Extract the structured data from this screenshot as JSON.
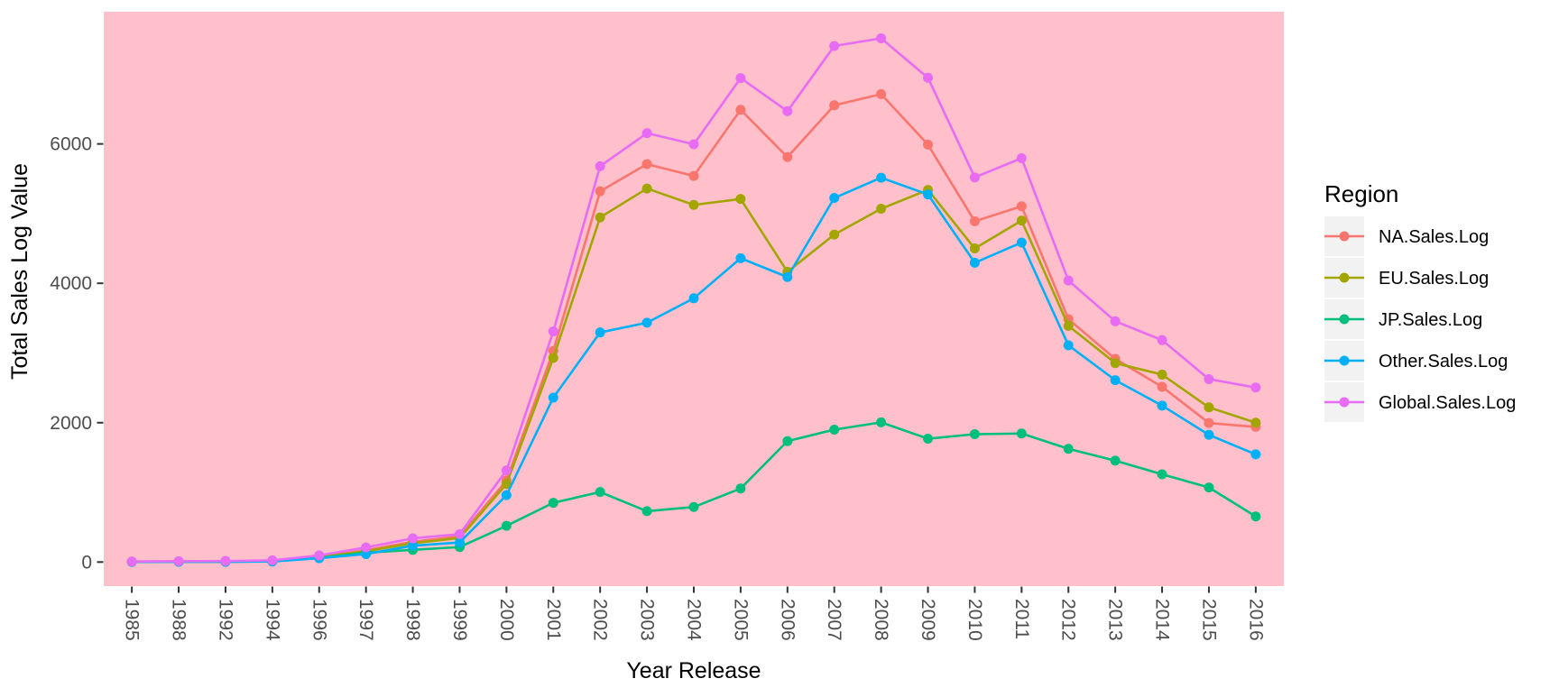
{
  "chart_data": {
    "type": "line",
    "title": "",
    "xlabel": "Year Release",
    "ylabel": "Total Sales Log Value",
    "legend_title": "Region",
    "legend_position": "right",
    "grid": false,
    "panel_bg": "#FFC0CB",
    "legend_key_bg": "#F2F2F2",
    "axis_text_color": "#4D4D4D",
    "tick_mark_color": "#333333",
    "y_ticks": [
      0,
      2000,
      4000,
      6000
    ],
    "ylim": [
      -345,
      7897
    ],
    "categories": [
      "1985",
      "1988",
      "1992",
      "1994",
      "1996",
      "1997",
      "1998",
      "1999",
      "2000",
      "2001",
      "2002",
      "2003",
      "2004",
      "2005",
      "2006",
      "2007",
      "2008",
      "2009",
      "2010",
      "2011",
      "2012",
      "2013",
      "2014",
      "2015",
      "2016"
    ],
    "series": [
      {
        "name": "NA.Sales.Log",
        "color": "#F8766D",
        "values": [
          5,
          8,
          8,
          15,
          75,
          170,
          290,
          370,
          1170,
          3030,
          5320,
          5710,
          5540,
          6490,
          5810,
          6555,
          6715,
          5990,
          4890,
          5105,
          3485,
          2915,
          2515,
          1995,
          1940
        ]
      },
      {
        "name": "EU.Sales.Log",
        "color": "#A3A500",
        "values": [
          3,
          5,
          5,
          12,
          70,
          155,
          270,
          345,
          1120,
          2930,
          4945,
          5360,
          5125,
          5210,
          4165,
          4700,
          5070,
          5340,
          4500,
          4900,
          3390,
          2855,
          2690,
          2220,
          2000
        ]
      },
      {
        "name": "JP.Sales.Log",
        "color": "#00BF7D",
        "values": [
          5,
          8,
          10,
          18,
          60,
          135,
          175,
          215,
          520,
          850,
          1005,
          730,
          790,
          1055,
          1735,
          1900,
          2005,
          1770,
          1835,
          1845,
          1625,
          1455,
          1260,
          1070,
          655
        ]
      },
      {
        "name": "Other.Sales.Log",
        "color": "#00B0F6",
        "values": [
          2,
          3,
          3,
          8,
          55,
          115,
          235,
          280,
          960,
          2360,
          3295,
          3435,
          3785,
          4360,
          4090,
          5225,
          5515,
          5275,
          4295,
          4585,
          3110,
          2610,
          2245,
          1825,
          1545
        ]
      },
      {
        "name": "Global.Sales.Log",
        "color": "#E76BF3",
        "values": [
          8,
          12,
          15,
          25,
          95,
          210,
          340,
          400,
          1315,
          3310,
          5680,
          6155,
          5995,
          6945,
          6470,
          7405,
          7515,
          6950,
          5520,
          5795,
          4040,
          3455,
          3185,
          2625,
          2505
        ]
      }
    ]
  }
}
